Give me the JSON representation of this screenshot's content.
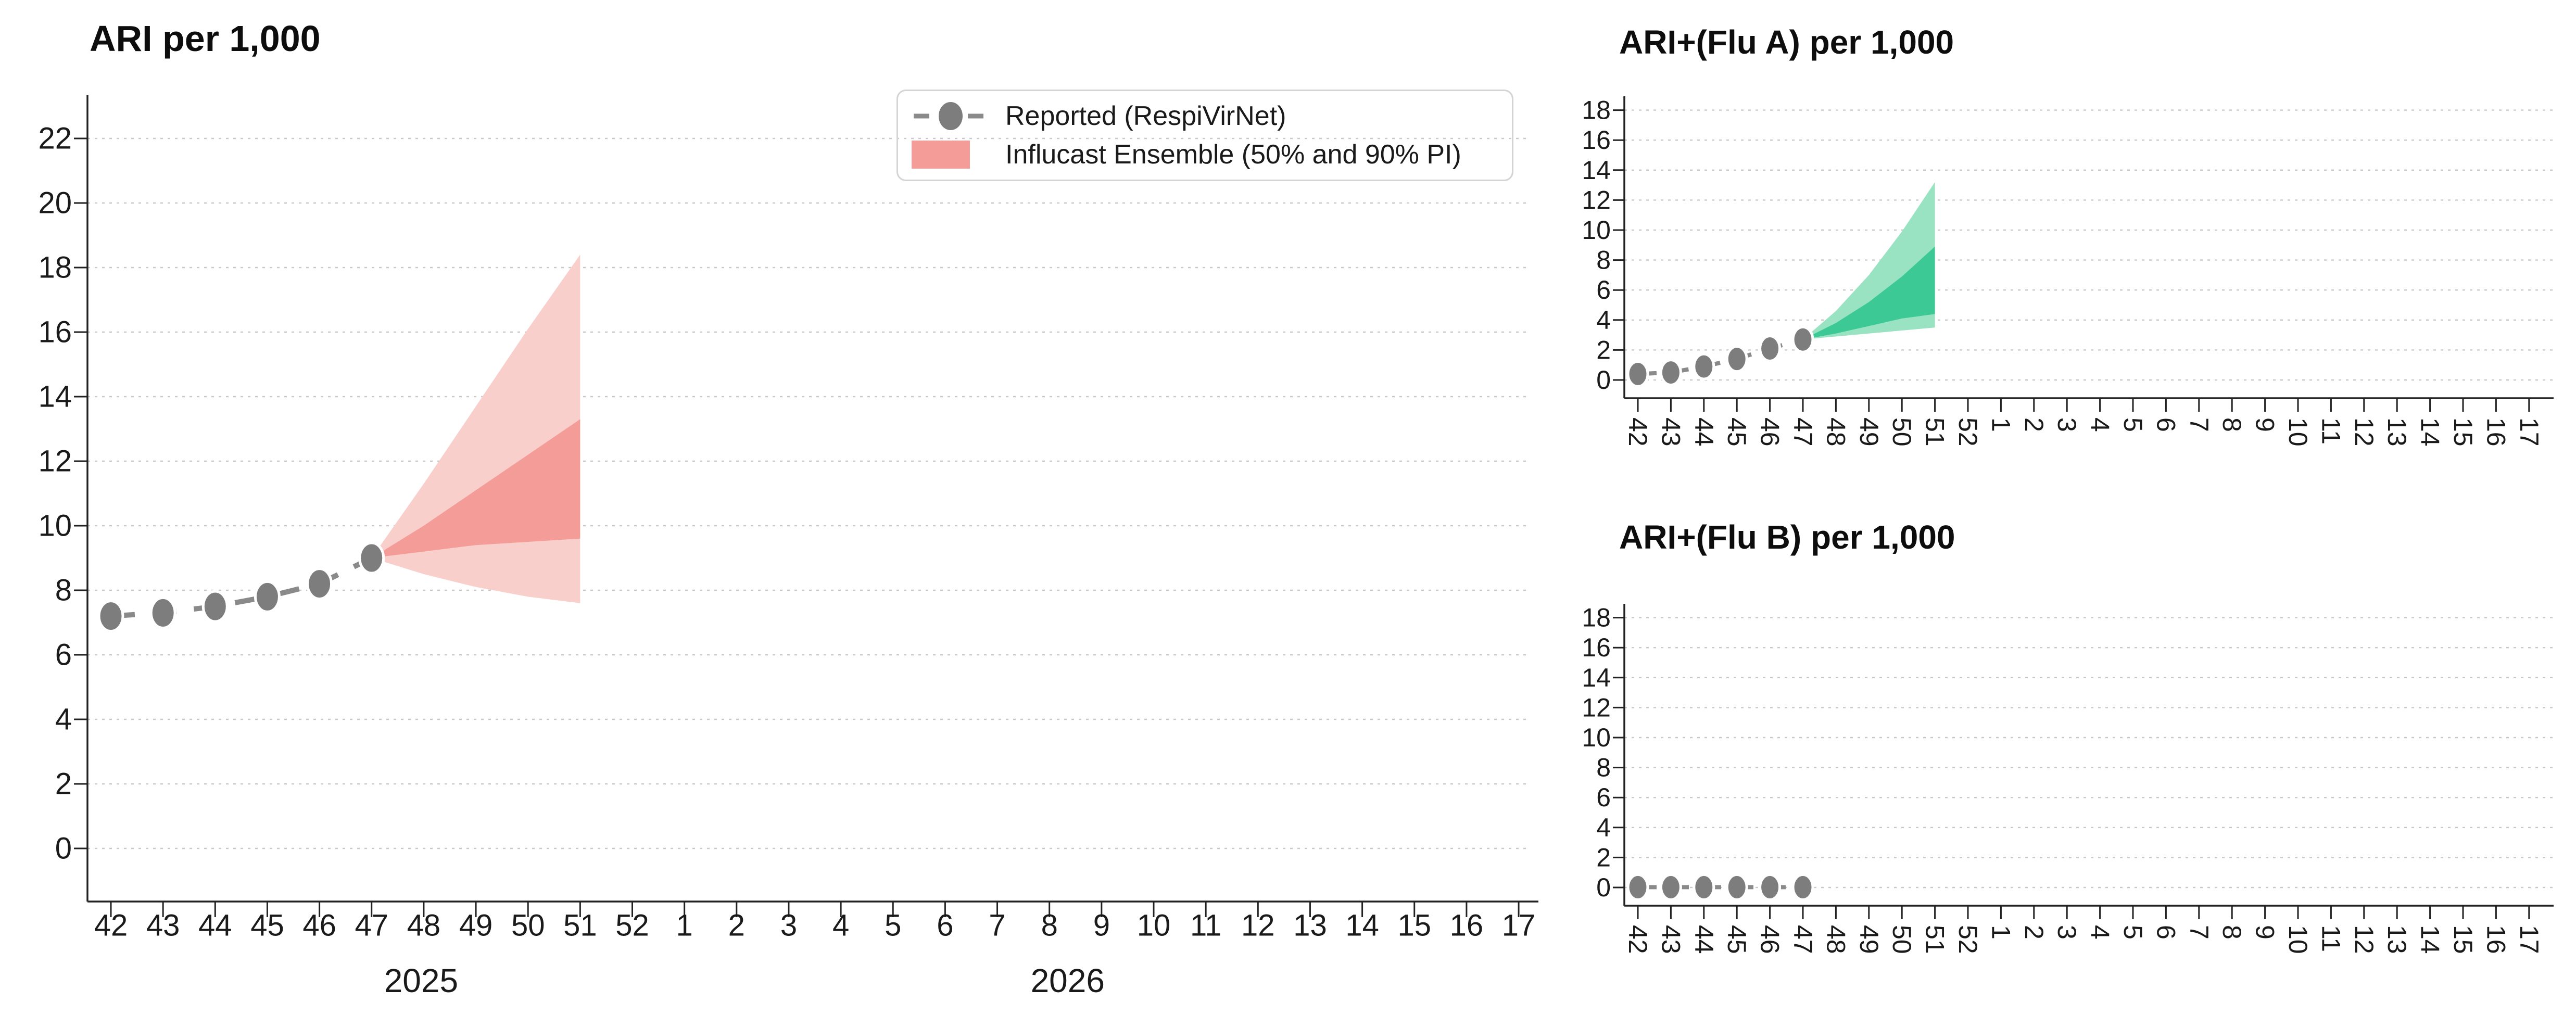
{
  "colors": {
    "reported_line": "#8a8a8a",
    "reported_marker": "#7d7d7d",
    "band_90_red": "#f9cfcc",
    "band_50_red": "#f49c97",
    "band_90_green": "#99e3c3",
    "band_50_green": "#3cc996",
    "gridline": "#c9c9c9",
    "spine": "#222222",
    "text": "#1a1a1a"
  },
  "legend": {
    "items": [
      {
        "label": "Reported (RespiVirNet)",
        "icon": "dashed-line-with-dot"
      },
      {
        "label": "Influcast Ensemble (50% and 90% PI)",
        "icon": "red-band-swatch"
      }
    ]
  },
  "chart_data": [
    {
      "id": "ari",
      "type": "line",
      "title": "ARI per 1,000",
      "xlabel": "",
      "ylabel": "",
      "grid": true,
      "legend_position": "upper right",
      "x_tick_labels": [
        "42",
        "43",
        "44",
        "45",
        "46",
        "47",
        "48",
        "49",
        "50",
        "51",
        "52",
        "1",
        "2",
        "3",
        "4",
        "5",
        "6",
        "7",
        "8",
        "9",
        "10",
        "11",
        "12",
        "13",
        "14",
        "15",
        "16",
        "17"
      ],
      "year_labels": [
        {
          "text": "2025",
          "week_index": 5.95
        },
        {
          "text": "2026",
          "week_index": 18.35
        }
      ],
      "y_ticks": [
        0,
        2,
        4,
        6,
        8,
        10,
        12,
        14,
        16,
        18,
        20,
        22
      ],
      "ylim": [
        0,
        23.3
      ],
      "band_theme": "red",
      "series": {
        "reported": {
          "name": "Reported (RespiVirNet)",
          "week_labels": [
            "42",
            "43",
            "44",
            "45",
            "46",
            "47"
          ],
          "start_index": 0,
          "values": [
            7.2,
            7.3,
            7.5,
            7.8,
            8.2,
            9.0
          ]
        },
        "forecast": {
          "name": "Influcast Ensemble (50% and 90% PI)",
          "week_labels": [
            "47",
            "48",
            "49",
            "50",
            "51"
          ],
          "start_index": 5,
          "pi90_upper": [
            9.0,
            11.3,
            13.7,
            16.1,
            18.4
          ],
          "pi50_upper": [
            9.0,
            10.0,
            11.1,
            12.2,
            13.3
          ],
          "pi50_lower": [
            9.0,
            9.2,
            9.4,
            9.5,
            9.6
          ],
          "pi90_lower": [
            9.0,
            8.5,
            8.1,
            7.8,
            7.6
          ]
        }
      }
    },
    {
      "id": "flua",
      "type": "line",
      "title": "ARI+(Flu A) per 1,000",
      "xlabel": "",
      "ylabel": "",
      "grid": true,
      "x_tick_labels": [
        "42",
        "43",
        "44",
        "45",
        "46",
        "47",
        "48",
        "49",
        "50",
        "51",
        "52",
        "1",
        "2",
        "3",
        "4",
        "5",
        "6",
        "7",
        "8",
        "9",
        "10",
        "11",
        "12",
        "13",
        "14",
        "15",
        "16",
        "17"
      ],
      "year_labels": [],
      "y_ticks": [
        0,
        2,
        4,
        6,
        8,
        10,
        12,
        14,
        16,
        18
      ],
      "ylim": [
        0,
        18.9
      ],
      "band_theme": "green",
      "series": {
        "reported": {
          "name": "Reported (RespiVirNet)",
          "week_labels": [
            "42",
            "43",
            "44",
            "45",
            "46",
            "47"
          ],
          "start_index": 0,
          "values": [
            0.4,
            0.5,
            0.9,
            1.4,
            2.1,
            2.7
          ]
        },
        "forecast": {
          "name": "Influcast Ensemble (50% and 90% PI)",
          "week_labels": [
            "47",
            "48",
            "49",
            "50",
            "51"
          ],
          "start_index": 5,
          "pi90_upper": [
            2.7,
            4.6,
            7.0,
            9.9,
            13.2
          ],
          "pi50_upper": [
            2.7,
            3.8,
            5.2,
            6.9,
            8.9
          ],
          "pi50_lower": [
            2.7,
            3.1,
            3.6,
            4.1,
            4.4
          ],
          "pi90_lower": [
            2.7,
            2.9,
            3.1,
            3.3,
            3.5
          ]
        }
      }
    },
    {
      "id": "flub",
      "type": "line",
      "title": "ARI+(Flu B) per 1,000",
      "xlabel": "",
      "ylabel": "",
      "grid": true,
      "x_tick_labels": [
        "42",
        "43",
        "44",
        "45",
        "46",
        "47",
        "48",
        "49",
        "50",
        "51",
        "52",
        "1",
        "2",
        "3",
        "4",
        "5",
        "6",
        "7",
        "8",
        "9",
        "10",
        "11",
        "12",
        "13",
        "14",
        "15",
        "16",
        "17"
      ],
      "year_labels": [],
      "y_ticks": [
        0,
        2,
        4,
        6,
        8,
        10,
        12,
        14,
        16,
        18
      ],
      "ylim": [
        0,
        18.9
      ],
      "band_theme": "none",
      "series": {
        "reported": {
          "name": "Reported (RespiVirNet)",
          "week_labels": [
            "42",
            "43",
            "44",
            "45",
            "46",
            "47"
          ],
          "start_index": 0,
          "values": [
            0.02,
            0.02,
            0.02,
            0.02,
            0.02,
            0.02
          ]
        },
        "forecast": null
      }
    }
  ]
}
